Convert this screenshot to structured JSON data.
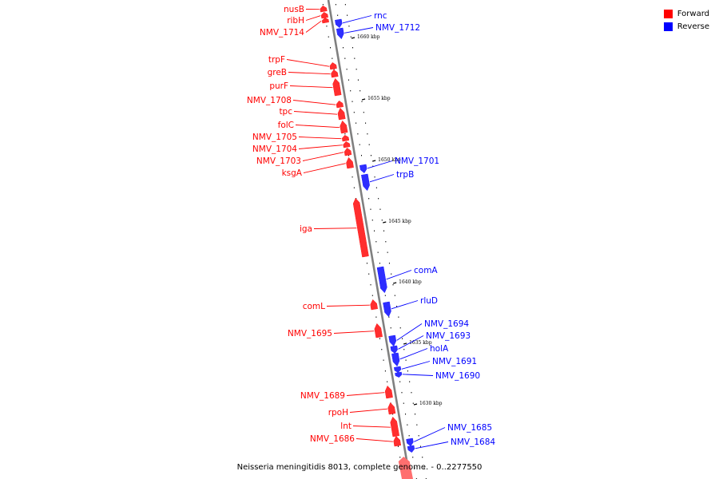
{
  "colors": {
    "forward": "#ff0000",
    "reverse": "#0000ff",
    "axis": "#808080"
  },
  "legend": [
    {
      "label": "Forward",
      "color": "#ff0000"
    },
    {
      "label": "Reverse",
      "color": "#0000ff"
    }
  ],
  "caption": "Neisseria meningitidis 8013, complete genome. - 0..2277550",
  "ticks": [
    {
      "label": "1660 kbp"
    },
    {
      "label": "1655 kbp"
    },
    {
      "label": "1650 kbp"
    },
    {
      "label": "1645 kbp"
    },
    {
      "label": "1640 kbp"
    },
    {
      "label": "1635 kbp"
    },
    {
      "label": "1630 kbp"
    }
  ],
  "genes": [
    {
      "name": "nusB",
      "strand": "forward"
    },
    {
      "name": "ribH",
      "strand": "forward"
    },
    {
      "name": "NMV_1714",
      "strand": "forward"
    },
    {
      "name": "rnc",
      "strand": "reverse"
    },
    {
      "name": "NMV_1712",
      "strand": "reverse"
    },
    {
      "name": "trpF",
      "strand": "forward"
    },
    {
      "name": "greB",
      "strand": "forward"
    },
    {
      "name": "purF",
      "strand": "forward"
    },
    {
      "name": "NMV_1708",
      "strand": "forward"
    },
    {
      "name": "tpc",
      "strand": "forward"
    },
    {
      "name": "folC",
      "strand": "forward"
    },
    {
      "name": "NMV_1705",
      "strand": "forward"
    },
    {
      "name": "NMV_1704",
      "strand": "forward"
    },
    {
      "name": "NMV_1703",
      "strand": "forward"
    },
    {
      "name": "ksgA",
      "strand": "forward"
    },
    {
      "name": "NMV_1701",
      "strand": "reverse"
    },
    {
      "name": "trpB",
      "strand": "reverse"
    },
    {
      "name": "iga",
      "strand": "forward"
    },
    {
      "name": "comA",
      "strand": "reverse"
    },
    {
      "name": "comL",
      "strand": "forward"
    },
    {
      "name": "rluD",
      "strand": "reverse"
    },
    {
      "name": "NMV_1695",
      "strand": "forward"
    },
    {
      "name": "NMV_1694",
      "strand": "reverse"
    },
    {
      "name": "NMV_1693",
      "strand": "reverse"
    },
    {
      "name": "holA",
      "strand": "reverse"
    },
    {
      "name": "NMV_1691",
      "strand": "reverse"
    },
    {
      "name": "NMV_1690",
      "strand": "reverse"
    },
    {
      "name": "NMV_1689",
      "strand": "forward"
    },
    {
      "name": "rpoH",
      "strand": "forward"
    },
    {
      "name": "lnt",
      "strand": "forward"
    },
    {
      "name": "NMV_1686",
      "strand": "forward"
    },
    {
      "name": "NMV_1685",
      "strand": "reverse"
    },
    {
      "name": "NMV_1684",
      "strand": "reverse"
    }
  ]
}
